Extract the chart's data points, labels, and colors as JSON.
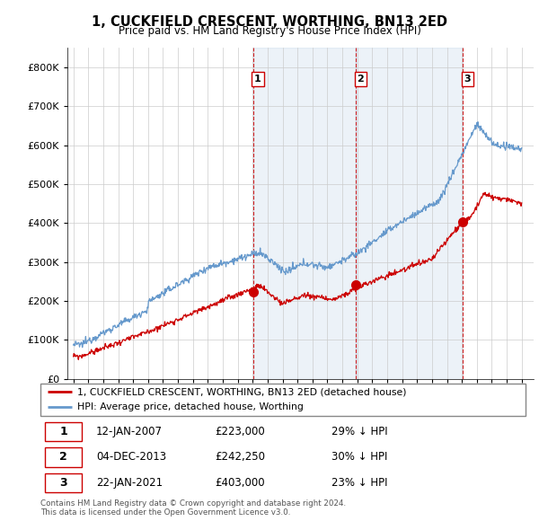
{
  "title": "1, CUCKFIELD CRESCENT, WORTHING, BN13 2ED",
  "subtitle": "Price paid vs. HM Land Registry's House Price Index (HPI)",
  "legend_line1": "1, CUCKFIELD CRESCENT, WORTHING, BN13 2ED (detached house)",
  "legend_line2": "HPI: Average price, detached house, Worthing",
  "table_rows": [
    {
      "num": "1",
      "date": "12-JAN-2007",
      "price": "£223,000",
      "pct": "29% ↓ HPI"
    },
    {
      "num": "2",
      "date": "04-DEC-2013",
      "price": "£242,250",
      "pct": "30% ↓ HPI"
    },
    {
      "num": "3",
      "date": "22-JAN-2021",
      "price": "£403,000",
      "pct": "23% ↓ HPI"
    }
  ],
  "footer": "Contains HM Land Registry data © Crown copyright and database right 2024.\nThis data is licensed under the Open Government Licence v3.0.",
  "red_color": "#cc0000",
  "blue_color": "#6699cc",
  "blue_fill": "#ddeeff",
  "ylim": [
    0,
    850000
  ],
  "yticks": [
    0,
    100000,
    200000,
    300000,
    400000,
    500000,
    600000,
    700000,
    800000
  ],
  "sale_markers": [
    {
      "year": 2007.04,
      "price": 223000,
      "label": "1"
    },
    {
      "year": 2013.92,
      "price": 242250,
      "label": "2"
    },
    {
      "year": 2021.06,
      "price": 403000,
      "label": "3"
    }
  ],
  "vline_years": [
    2007.04,
    2013.92,
    2021.06
  ],
  "xstart": 1995,
  "xend": 2025
}
